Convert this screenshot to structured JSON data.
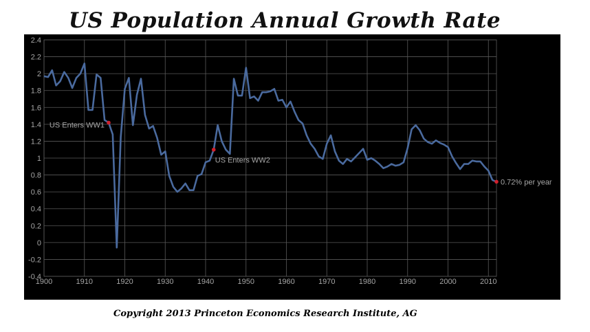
{
  "title": "US Population Annual Growth Rate",
  "copyright": "Copyright 2013 Princeton Economics Research Institute, AG",
  "colors": {
    "panel": "#000000",
    "line": "#4a6a9e",
    "marker": "#d0202c",
    "grid": "#5a5a5a",
    "text": "#a6a6a6"
  },
  "chart_data": {
    "type": "line",
    "title": "US Population Annual Growth Rate",
    "xlabel": "",
    "ylabel": "",
    "xlim": [
      1900,
      2012
    ],
    "ylim": [
      -0.4,
      2.4
    ],
    "grid": true,
    "legend": "none",
    "x_ticks": [
      "1900",
      "1910",
      "1920",
      "1930",
      "1940",
      "1950",
      "1960",
      "1970",
      "1980",
      "1990",
      "2000",
      "2010"
    ],
    "y_ticks": [
      "2.4",
      "2.2",
      "2",
      "1.8",
      "1.6",
      "1.4",
      "1.2",
      "1",
      "0.8",
      "0.6",
      "0.4",
      "0.2",
      "0",
      "-0.2",
      "-0.4"
    ],
    "series": [
      {
        "x": [
          1900,
          1901,
          1902,
          1903,
          1904,
          1905,
          1906,
          1907,
          1908,
          1909,
          1910,
          1911,
          1912,
          1913,
          1914,
          1915,
          1916,
          1917,
          1918,
          1919,
          1920,
          1921,
          1922,
          1923,
          1924,
          1925,
          1926,
          1927,
          1928,
          1929,
          1930,
          1931,
          1932,
          1933,
          1934,
          1935,
          1936,
          1937,
          1938,
          1939,
          1940,
          1941,
          1942,
          1943,
          1944,
          1945,
          1946,
          1947,
          1948,
          1949,
          1950,
          1951,
          1952,
          1953,
          1954,
          1955,
          1956,
          1957,
          1958,
          1959,
          1960,
          1961,
          1962,
          1963,
          1964,
          1965,
          1966,
          1967,
          1968,
          1969,
          1970,
          1971,
          1972,
          1973,
          1974,
          1975,
          1976,
          1977,
          1978,
          1979,
          1980,
          1981,
          1982,
          1983,
          1984,
          1985,
          1986,
          1987,
          1988,
          1989,
          1990,
          1991,
          1992,
          1993,
          1994,
          1995,
          1996,
          1997,
          1998,
          1999,
          2000,
          2001,
          2002,
          2003,
          2004,
          2005,
          2006,
          2007,
          2008,
          2009,
          2010,
          2011,
          2012
        ],
        "y": [
          1.97,
          1.96,
          2.04,
          1.86,
          1.91,
          2.02,
          1.95,
          1.83,
          1.95,
          2.0,
          2.12,
          1.57,
          1.57,
          1.99,
          1.95,
          1.45,
          1.42,
          1.28,
          -0.06,
          1.25,
          1.82,
          1.95,
          1.39,
          1.75,
          1.94,
          1.51,
          1.35,
          1.38,
          1.24,
          1.04,
          1.08,
          0.79,
          0.66,
          0.6,
          0.64,
          0.7,
          0.62,
          0.62,
          0.79,
          0.81,
          0.95,
          0.97,
          1.1,
          1.39,
          1.2,
          1.1,
          1.05,
          1.94,
          1.74,
          1.74,
          2.07,
          1.71,
          1.73,
          1.68,
          1.78,
          1.78,
          1.79,
          1.82,
          1.68,
          1.69,
          1.6,
          1.67,
          1.55,
          1.45,
          1.41,
          1.27,
          1.17,
          1.11,
          1.02,
          0.99,
          1.17,
          1.27,
          1.08,
          0.97,
          0.93,
          0.99,
          0.96,
          1.01,
          1.06,
          1.11,
          0.98,
          1.0,
          0.97,
          0.93,
          0.88,
          0.9,
          0.93,
          0.91,
          0.92,
          0.95,
          1.12,
          1.34,
          1.39,
          1.33,
          1.23,
          1.19,
          1.17,
          1.21,
          1.18,
          1.16,
          1.13,
          1.02,
          0.94,
          0.87,
          0.93,
          0.93,
          0.97,
          0.96,
          0.96,
          0.9,
          0.85,
          0.74,
          0.72
        ]
      }
    ],
    "annotations": [
      {
        "label": "US Enters WW1",
        "x": 1916,
        "y": 1.42,
        "anchor": "end",
        "dx": -6,
        "dy": 7
      },
      {
        "label": "US Enters WW2",
        "x": 1942,
        "y": 1.1,
        "anchor": "start",
        "dx": 2,
        "dy": 19
      },
      {
        "label": "0.72% per year",
        "x": 2012,
        "y": 0.72,
        "anchor": "start",
        "dx": 6,
        "dy": 4
      }
    ]
  }
}
